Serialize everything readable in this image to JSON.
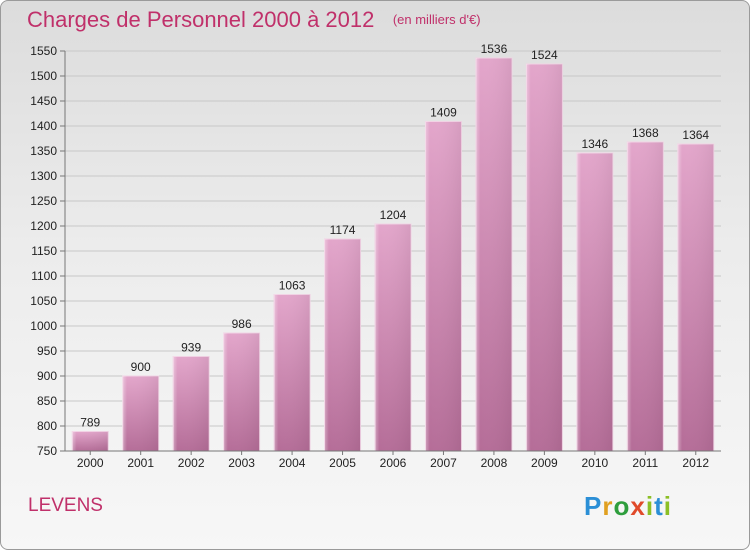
{
  "header": {
    "title": "Charges de Personnel 2000 à 2012",
    "subtitle": "(en milliers d'€)"
  },
  "footer": {
    "city": "LEVENS",
    "logo_text": "Proxiti"
  },
  "colors": {
    "bar": "#c97aa5",
    "title": "#c0306a"
  },
  "chart_data": {
    "type": "bar",
    "title": "Charges de Personnel 2000 à 2012",
    "subtitle": "(en milliers d'€)",
    "categories": [
      "2000",
      "2001",
      "2002",
      "2003",
      "2004",
      "2005",
      "2006",
      "2007",
      "2008",
      "2009",
      "2010",
      "2011",
      "2012"
    ],
    "values": [
      789,
      900,
      939,
      986,
      1063,
      1174,
      1204,
      1409,
      1536,
      1524,
      1346,
      1368,
      1364
    ],
    "ylim": [
      750,
      1550
    ],
    "yticks": [
      750,
      800,
      850,
      900,
      950,
      1000,
      1050,
      1100,
      1150,
      1200,
      1250,
      1300,
      1350,
      1400,
      1450,
      1500,
      1550
    ],
    "grid": true,
    "data_labels": true
  }
}
